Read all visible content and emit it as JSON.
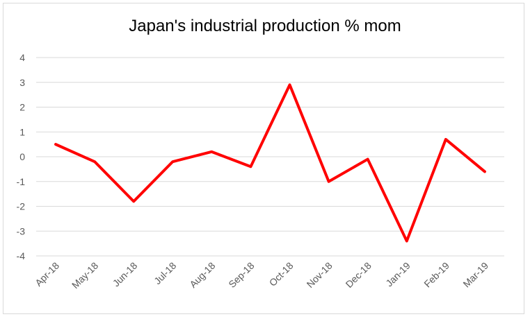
{
  "chart_data": {
    "type": "line",
    "title": "Japan's industrial production % mom",
    "xlabel": "",
    "ylabel": "",
    "categories": [
      "Apr-18",
      "May-18",
      "Jun-18",
      "Jul-18",
      "Aug-18",
      "Sep-18",
      "Oct-18",
      "Nov-18",
      "Dec-18",
      "Jan-19",
      "Feb-19",
      "Mar-19"
    ],
    "series": [
      {
        "values": [
          0.5,
          -0.2,
          -1.8,
          -0.2,
          0.2,
          -0.4,
          2.9,
          -1.0,
          -0.1,
          -3.4,
          0.7,
          -0.6
        ]
      }
    ],
    "ylim": [
      -4,
      4
    ],
    "yticks": [
      "4",
      "3",
      "2",
      "1",
      "0",
      "-1",
      "-2",
      "-3",
      "-4"
    ],
    "grid": true,
    "legend": "none",
    "colors": {
      "line": "#ff0000",
      "grid": "#d9d9d9",
      "text": "#595959"
    }
  }
}
